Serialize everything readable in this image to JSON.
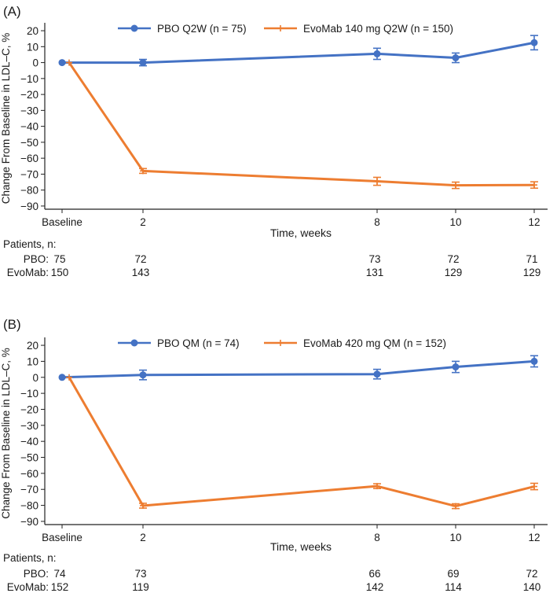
{
  "chart_data": [
    {
      "type": "line",
      "panel_label": "(A)",
      "xlabel": "Time, weeks",
      "ylabel": "Change From Baseline in LDL–C, %",
      "categories": [
        "Baseline",
        "2",
        "8",
        "10",
        "12"
      ],
      "x": [
        0,
        2,
        8,
        10,
        12
      ],
      "ylim": [
        -92,
        22
      ],
      "yticks": [
        20,
        10,
        0,
        -10,
        -20,
        -30,
        -40,
        -50,
        -60,
        -70,
        -80,
        -90
      ],
      "grid": false,
      "legend": "top-center",
      "series": [
        {
          "name": "PBO Q2W (n = 75)",
          "color": "#4472c4",
          "marker": "circle",
          "values": [
            0,
            0,
            5.5,
            3,
            12.5
          ],
          "errors": [
            0,
            2,
            3.5,
            3,
            4.5
          ]
        },
        {
          "name": "EvoMab 140 mg Q2W (n = 150)",
          "color": "#ed7d31",
          "marker": "plus",
          "values": [
            0,
            -68,
            -74.5,
            -77,
            -76.8
          ],
          "errors": [
            0,
            1.5,
            2.5,
            2,
            2
          ]
        }
      ],
      "patients": {
        "heading": "Patients, n:",
        "rows": [
          {
            "label": "PBO:",
            "values": [
              "75",
              "72",
              "73",
              "72",
              "71"
            ]
          },
          {
            "label": "EvoMab:",
            "values": [
              "150",
              "143",
              "131",
              "129",
              "129"
            ]
          }
        ]
      }
    },
    {
      "type": "line",
      "panel_label": "(B)",
      "xlabel": "Time, weeks",
      "ylabel": "Change From Baseline in LDL–C, %",
      "categories": [
        "Baseline",
        "2",
        "8",
        "10",
        "12"
      ],
      "x": [
        0,
        2,
        8,
        10,
        12
      ],
      "ylim": [
        -92,
        22
      ],
      "yticks": [
        20,
        10,
        0,
        -10,
        -20,
        -30,
        -40,
        -50,
        -60,
        -70,
        -80,
        -90
      ],
      "grid": false,
      "legend": "top-center",
      "series": [
        {
          "name": "PBO QM (n = 74)",
          "color": "#4472c4",
          "marker": "circle",
          "values": [
            0,
            1.5,
            2,
            6.5,
            10
          ],
          "errors": [
            0,
            3,
            3,
            3.5,
            3.5
          ]
        },
        {
          "name": "EvoMab 420 mg QM (n = 152)",
          "color": "#ed7d31",
          "marker": "plus",
          "values": [
            0,
            -80.2,
            -68,
            -80.5,
            -68.2
          ],
          "errors": [
            0,
            1.5,
            1.5,
            1.5,
            2
          ]
        }
      ],
      "patients": {
        "heading": "Patients, n:",
        "rows": [
          {
            "label": "PBO:",
            "values": [
              "74",
              "73",
              "66",
              "69",
              "72"
            ]
          },
          {
            "label": "EvoMab:",
            "values": [
              "152",
              "119",
              "142",
              "114",
              "140"
            ]
          }
        ]
      }
    }
  ]
}
